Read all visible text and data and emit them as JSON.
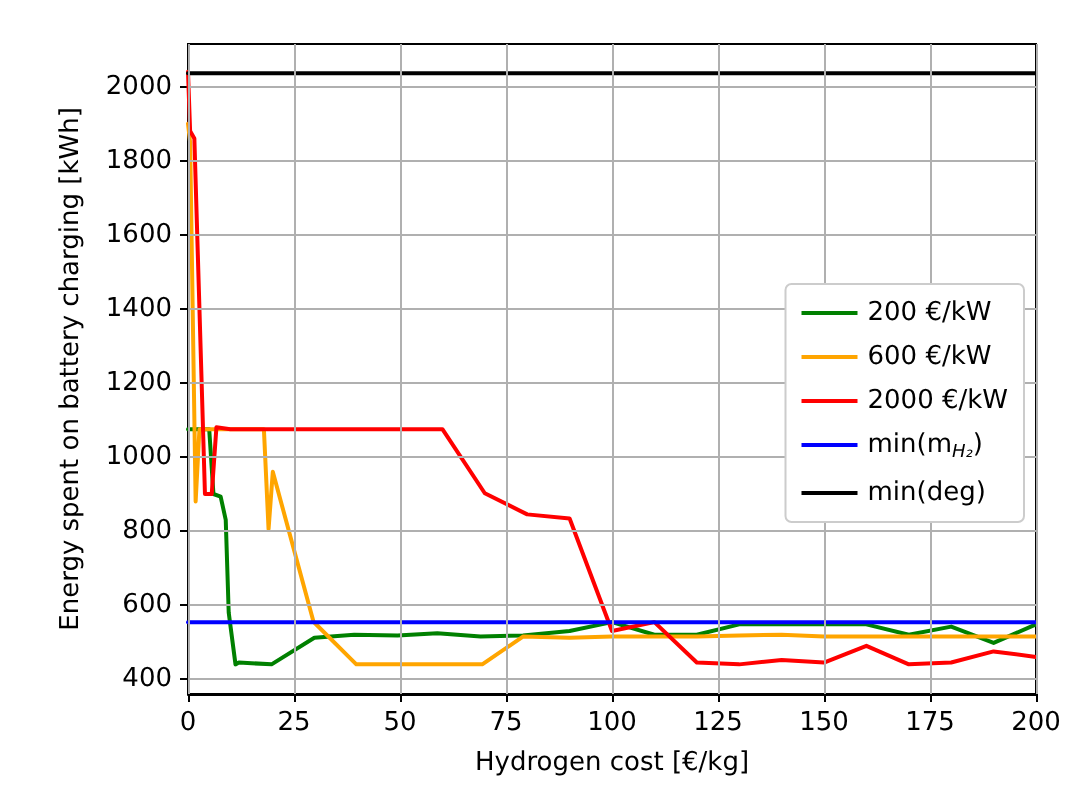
{
  "chart_data": {
    "type": "line",
    "xlabel": "Hydrogen cost [€/kg]",
    "ylabel": "Energy spent on battery charging [kWh]",
    "xlim": [
      0,
      200
    ],
    "ylim": [
      360,
      2115
    ],
    "xticks": [
      0,
      25,
      50,
      75,
      100,
      125,
      150,
      175,
      200
    ],
    "yticks": [
      400,
      600,
      800,
      1000,
      1200,
      1400,
      1600,
      1800,
      2000
    ],
    "grid": true,
    "legend": "right",
    "marker": "none",
    "line_style": "solid",
    "series": [
      {
        "name": "200 €/kW",
        "color": "#008000",
        "x": [
          0,
          1,
          5,
          6,
          7.7,
          8.9,
          9.6,
          11.2,
          12,
          19.7,
          29.8,
          39.2,
          49.4,
          58.8,
          69,
          79,
          90,
          100,
          110,
          120,
          130,
          140,
          150,
          160,
          170,
          180,
          190,
          200
        ],
        "values": [
          1075,
          1075,
          1075,
          900,
          893,
          830,
          580,
          440,
          445,
          440,
          512,
          520,
          518,
          524,
          515,
          518,
          530,
          554,
          520,
          520,
          548,
          548,
          548,
          548,
          520,
          542,
          498,
          548
        ]
      },
      {
        "name": "600 €/kW",
        "color": "#ffa500",
        "x": [
          0,
          0.5,
          1.8,
          2.7,
          10,
          17.9,
          19,
          20,
          29.6,
          39.7,
          50,
          60,
          69.4,
          79,
          90,
          100,
          110,
          120,
          130,
          140,
          150,
          160,
          170,
          180,
          190,
          200
        ],
        "values": [
          1900,
          1850,
          880,
          1075,
          1075,
          1075,
          805,
          960,
          555,
          440,
          440,
          440,
          440,
          515,
          512,
          515,
          515,
          515,
          518,
          520,
          515,
          515,
          515,
          515,
          515,
          515
        ]
      },
      {
        "name": "2000 €/kW",
        "color": "#ff0000",
        "x": [
          0,
          0.5,
          1.5,
          4,
          5.6,
          6.7,
          10,
          20,
          40,
          60,
          70,
          80,
          90,
          100,
          110,
          120,
          130,
          140,
          150,
          160,
          170,
          180,
          190,
          200
        ],
        "values": [
          2040,
          1880,
          1860,
          900,
          900,
          1080,
          1075,
          1075,
          1075,
          1075,
          902,
          845,
          834,
          530,
          554,
          445,
          440,
          452,
          445,
          490,
          440,
          445,
          475,
          460
        ]
      },
      {
        "name": "min(m$_{H₂}$)",
        "color": "#0000ff",
        "x": [
          0,
          200
        ],
        "values": [
          554,
          554
        ]
      },
      {
        "name": "min(deg)",
        "color": "#000000",
        "x": [
          0,
          200
        ],
        "values": [
          2036,
          2036
        ]
      }
    ]
  }
}
